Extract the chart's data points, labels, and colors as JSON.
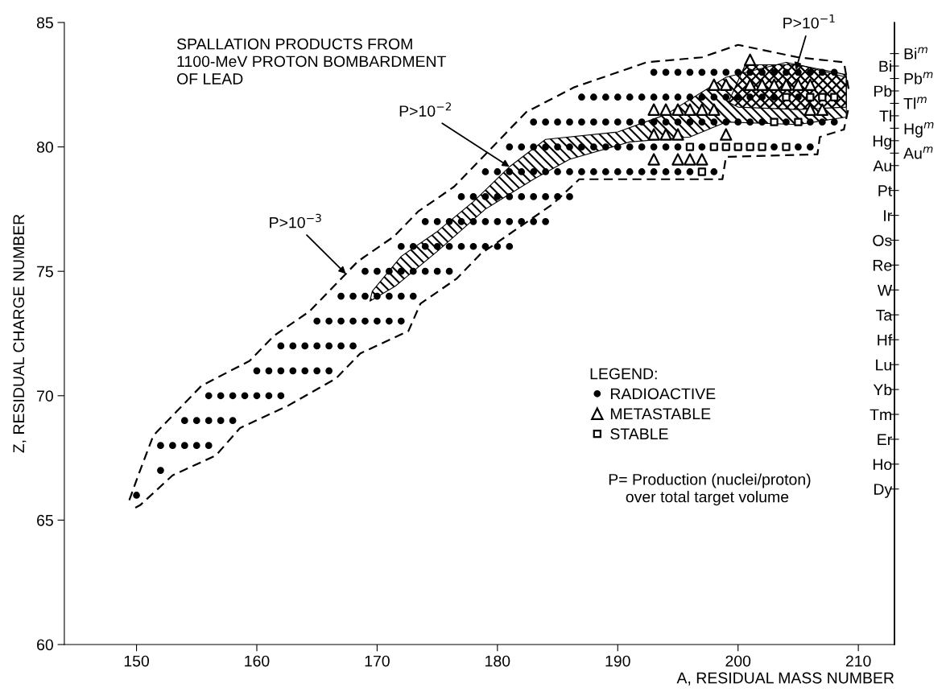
{
  "chart_data": {
    "type": "scatter",
    "title": "SPALLATION PRODUCTS FROM\n1100-MeV PROTON BOMBARDMENT\nOF LEAD",
    "xlabel": "A, RESIDUAL MASS NUMBER",
    "ylabel": "Z, RESIDUAL CHARGE NUMBER",
    "xlim": [
      144,
      213
    ],
    "xticks": [
      150,
      160,
      170,
      180,
      190,
      200,
      210
    ],
    "ylim": [
      60,
      85
    ],
    "yticks": [
      60,
      65,
      70,
      75,
      80,
      85
    ],
    "y2_categories": [
      null,
      null,
      "Bi$^{m}$",
      "Bi",
      "Pb$^{m}$",
      "Pb",
      "Tl$^{m}$",
      "Tl",
      "Hg$^{m}$",
      "Hg",
      "Au$^{m}$",
      "Au",
      null,
      "Pt",
      null,
      "Ir",
      null,
      "Os",
      null,
      "Re",
      null,
      "W",
      null,
      "Ta",
      null,
      "Hf",
      null,
      "Lu",
      null,
      "Yb",
      null,
      "Tm",
      null,
      "Er",
      null,
      "Ho",
      null,
      "Dy",
      null,
      null,
      null,
      null,
      null,
      null,
      null,
      null,
      null,
      null,
      null,
      null
    ],
    "grid": false,
    "legend": "bottom right",
    "legend_title": "LEGEND:",
    "series": [
      {
        "name": "RADIOACTIVE",
        "marker": "circle",
        "color": "#000000",
        "x": [
          150,
          152,
          152,
          153,
          154,
          155,
          156,
          154,
          155,
          156,
          157,
          158,
          156,
          157,
          158,
          159,
          160,
          161,
          162,
          160,
          161,
          162,
          163,
          164,
          165,
          166,
          162,
          163,
          164,
          165,
          166,
          167,
          168,
          165,
          166,
          167,
          168,
          169,
          170,
          171,
          172,
          167,
          168,
          169,
          170,
          171,
          172,
          173,
          169,
          170,
          171,
          172,
          173,
          174,
          175,
          176,
          172,
          173,
          174,
          175,
          176,
          177,
          178,
          179,
          180,
          181,
          174,
          175,
          176,
          177,
          178,
          179,
          180,
          181,
          182,
          183,
          184,
          177,
          178,
          179,
          180,
          181,
          182,
          183,
          184,
          185,
          186,
          179,
          180,
          181,
          182,
          183,
          184,
          185,
          186,
          187,
          188,
          189,
          190,
          191,
          192,
          193,
          194,
          195,
          196,
          198,
          181,
          182,
          183,
          184,
          185,
          186,
          187,
          188,
          189,
          190,
          191,
          192,
          193,
          194,
          195,
          197,
          203,
          205,
          206,
          183,
          184,
          185,
          186,
          187,
          188,
          189,
          190,
          191,
          192,
          193,
          194,
          195,
          196,
          197,
          198,
          199,
          200,
          201,
          202,
          204,
          206,
          207,
          208,
          187,
          188,
          189,
          190,
          191,
          192,
          193,
          194,
          195,
          196,
          197,
          198,
          199,
          200,
          201,
          202,
          203,
          205,
          193,
          194,
          195,
          196,
          197,
          198,
          199,
          200,
          201,
          202,
          203,
          204,
          205,
          206,
          207,
          208
        ],
        "values": [
          66,
          67,
          68,
          68,
          68,
          68,
          68,
          69,
          69,
          69,
          69,
          69,
          70,
          70,
          70,
          70,
          70,
          70,
          70,
          71,
          71,
          71,
          71,
          71,
          71,
          71,
          72,
          72,
          72,
          72,
          72,
          72,
          72,
          73,
          73,
          73,
          73,
          73,
          73,
          73,
          73,
          74,
          74,
          74,
          74,
          74,
          74,
          74,
          75,
          75,
          75,
          75,
          75,
          75,
          75,
          75,
          76,
          76,
          76,
          76,
          76,
          76,
          76,
          76,
          76,
          76,
          77,
          77,
          77,
          77,
          77,
          77,
          77,
          77,
          77,
          77,
          77,
          78,
          78,
          78,
          78,
          78,
          78,
          78,
          78,
          78,
          78,
          79,
          79,
          79,
          79,
          79,
          79,
          79,
          79,
          79,
          79,
          79,
          79,
          79,
          79,
          79,
          79,
          79,
          79,
          79,
          80,
          80,
          80,
          80,
          80,
          80,
          80,
          80,
          80,
          80,
          80,
          80,
          80,
          80,
          80,
          80,
          80,
          80,
          80,
          81,
          81,
          81,
          81,
          81,
          81,
          81,
          81,
          81,
          81,
          81,
          81,
          81,
          81,
          81,
          81,
          81,
          81,
          81,
          81,
          81,
          81,
          81,
          81,
          82,
          82,
          82,
          82,
          82,
          82,
          82,
          82,
          82,
          82,
          82,
          82,
          82,
          82,
          82,
          82,
          82,
          82,
          83,
          83,
          83,
          83,
          83,
          83,
          83,
          83,
          83,
          83,
          83,
          83,
          83,
          83,
          83,
          83
        ]
      },
      {
        "name": "METASTABLE",
        "marker": "triangle",
        "color": "#000000",
        "x": [
          193,
          195,
          196,
          197,
          193,
          194,
          195,
          199,
          193,
          194,
          195,
          196,
          197,
          198,
          206,
          207,
          198,
          199,
          201,
          202,
          203,
          204,
          205,
          206,
          201
        ],
        "values": [
          79.5,
          79.5,
          79.5,
          79.5,
          80.5,
          80.5,
          80.5,
          80.5,
          81.5,
          81.5,
          81.5,
          81.5,
          81.5,
          81.5,
          81.5,
          81.5,
          82.5,
          82.5,
          82.5,
          82.5,
          82.5,
          82.5,
          82.5,
          82.5,
          83.5
        ]
      },
      {
        "name": "STABLE",
        "marker": "square",
        "color": "#000000",
        "x": [
          197,
          196,
          198,
          199,
          200,
          201,
          202,
          204,
          203,
          205,
          204,
          206,
          207,
          208
        ],
        "values": [
          79,
          80,
          80,
          80,
          80,
          80,
          80,
          80,
          81,
          81,
          82,
          82,
          82,
          82
        ]
      },
      {
        "type": "line",
        "line_style": "dashed",
        "color": "#000000",
        "x": [
          149.4,
          150.3,
          151.4,
          153.4,
          155.4,
          159.4,
          161.4,
          164.4,
          166.4,
          168.4,
          171.4,
          173.4,
          176.4,
          178.4,
          180.4,
          182.4,
          186.4,
          192.4,
          197,
          200,
          205,
          208.8,
          209.2
        ],
        "values": [
          65.8,
          67.0,
          68.4,
          69.4,
          70.4,
          71.4,
          72.4,
          73.4,
          74.4,
          75.4,
          76.4,
          77.4,
          78.4,
          79.4,
          80.4,
          81.4,
          82.4,
          83.4,
          83.6,
          84.1,
          83.6,
          83.4,
          82.3
        ]
      },
      {
        "type": "line",
        "line_style": "dashed",
        "color": "#000000",
        "x": [
          149.9,
          150.3,
          153,
          156.6,
          158.6,
          162.6,
          166.6,
          168.6,
          172.6,
          173.6,
          176.6,
          178.6,
          181.6,
          184.6,
          186.8,
          198.7,
          199,
          206.6,
          206.8,
          208.8,
          209.2
        ],
        "values": [
          65.5,
          65.6,
          66.8,
          67.6,
          68.7,
          69.6,
          70.7,
          71.7,
          72.6,
          73.7,
          74.7,
          75.7,
          76.7,
          77.7,
          78.7,
          78.7,
          79.6,
          79.7,
          80.4,
          80.7,
          81.6
        ]
      },
      {
        "type": "area",
        "color": "#000000",
        "x": [
          169.6,
          172,
          175,
          178,
          181,
          184,
          190,
          194,
          197,
          199,
          204,
          209,
          209,
          205,
          199,
          196,
          191,
          186,
          183,
          179,
          175,
          171.5,
          169.4,
          169.6
        ],
        "values": [
          74.2,
          75.6,
          76.6,
          77.8,
          79.2,
          80.3,
          80.6,
          81.3,
          82.2,
          82.8,
          83.4,
          82.9,
          81.2,
          80.9,
          81,
          80.4,
          80.2,
          79.5,
          78.7,
          77.5,
          75.8,
          74.4,
          73.8,
          74.2
        ]
      },
      {
        "type": "area",
        "color": "#000000",
        "x": [
          199.2,
          200.6,
          205,
          209,
          209,
          205,
          200,
          199.2
        ],
        "values": [
          81.8,
          83.3,
          83.3,
          82.8,
          81.6,
          81.5,
          81.6,
          81.8
        ]
      }
    ],
    "annotations": [
      "P= Production (nuclei/proton)\n    over total target volume",
      {
        "text": "P>10$^{−3}$",
        "x": 167.4,
        "y": 74.9
      },
      {
        "text": "P>10$^{−2}$",
        "x": 181,
        "y": 79.2
      },
      {
        "text": "P>10$^{−1}$",
        "x": 204.8,
        "y": 83.1
      }
    ]
  }
}
